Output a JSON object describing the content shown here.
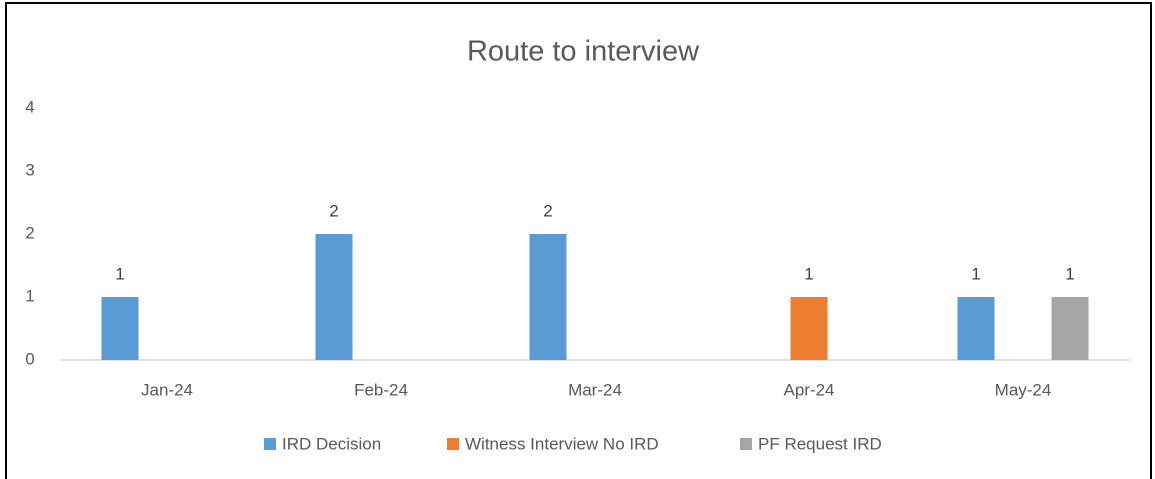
{
  "chart_data": {
    "type": "bar",
    "title": "Route to interview",
    "categories": [
      "Jan-24",
      "Feb-24",
      "Mar-24",
      "Apr-24",
      "May-24"
    ],
    "series": [
      {
        "name": "IRD Decision",
        "color": "#5b9bd5",
        "values": [
          1,
          2,
          2,
          null,
          1
        ]
      },
      {
        "name": "Witness Interview No IRD",
        "color": "#ed7d31",
        "values": [
          null,
          null,
          null,
          1,
          null
        ]
      },
      {
        "name": "PF Request IRD",
        "color": "#a5a5a5",
        "values": [
          null,
          null,
          null,
          null,
          1
        ]
      }
    ],
    "ylim": [
      0,
      4
    ],
    "yticks": [
      0,
      1,
      2,
      3,
      4
    ],
    "grid": false,
    "legend": "bottom"
  }
}
